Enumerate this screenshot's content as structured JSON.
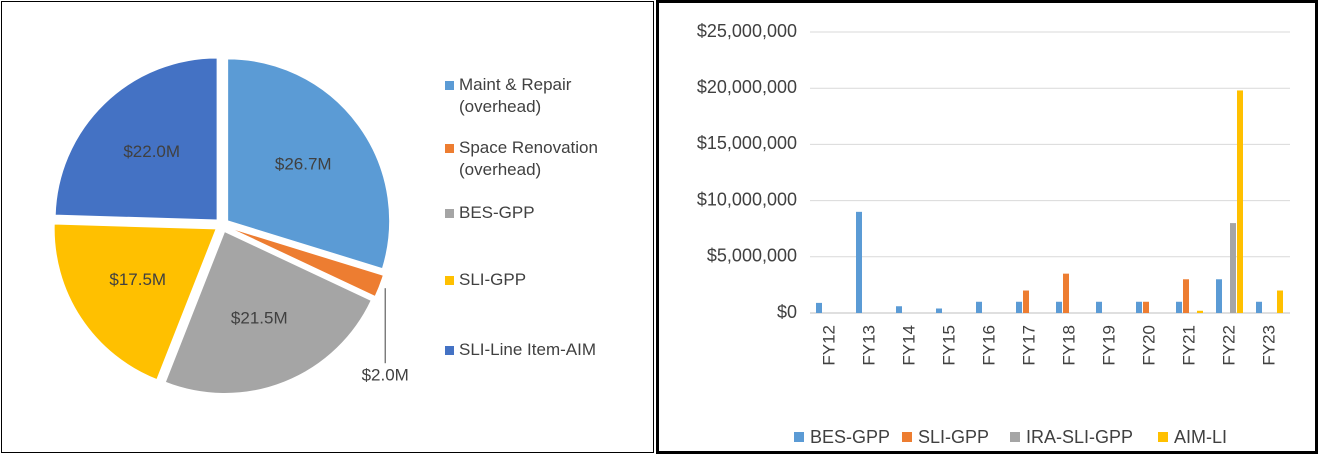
{
  "chart_data": [
    {
      "type": "pie",
      "categories": [
        "Maint & Repair (overhead)",
        "Space Renovation (overhead)",
        "BES-GPP",
        "SLI-GPP",
        "SLI-Line Item-AIM"
      ],
      "values": [
        26.7,
        2.0,
        21.5,
        17.5,
        22.0
      ],
      "value_labels": [
        "$26.7M",
        "$2.0M",
        "$21.5M",
        "$17.5M",
        "$22.0M"
      ],
      "colors": [
        "#5b9bd5",
        "#ed7d31",
        "#a5a5a5",
        "#ffc000",
        "#4472c4"
      ]
    },
    {
      "type": "bar",
      "categories": [
        "FY12",
        "FY13",
        "FY14",
        "FY15",
        "FY16",
        "FY17",
        "FY18",
        "FY19",
        "FY20",
        "FY21",
        "FY22",
        "FY23"
      ],
      "series": [
        {
          "name": "BES-GPP",
          "color": "#5b9bd5",
          "values": [
            900000,
            9000000,
            600000,
            400000,
            1000000,
            1000000,
            1000000,
            1000000,
            1000000,
            1000000,
            3000000,
            1000000
          ]
        },
        {
          "name": "SLI-GPP",
          "color": "#ed7d31",
          "values": [
            0,
            0,
            0,
            0,
            0,
            2000000,
            3500000,
            0,
            1000000,
            3000000,
            0,
            0
          ]
        },
        {
          "name": "IRA-SLI-GPP",
          "color": "#a5a5a5",
          "values": [
            0,
            0,
            0,
            0,
            0,
            0,
            0,
            0,
            0,
            0,
            8000000,
            0
          ]
        },
        {
          "name": "AIM-LI",
          "color": "#ffc000",
          "values": [
            0,
            0,
            0,
            0,
            0,
            0,
            0,
            0,
            0,
            200000,
            19800000,
            2000000
          ]
        }
      ],
      "ylim": [
        0,
        25000000
      ],
      "yticks": [
        {
          "value": 0,
          "label": "$0"
        },
        {
          "value": 5000000,
          "label": "$5,000,000"
        },
        {
          "value": 10000000,
          "label": "$10,000,000"
        },
        {
          "value": 15000000,
          "label": "$15,000,000"
        },
        {
          "value": 20000000,
          "label": "$20,000,000"
        },
        {
          "value": 25000000,
          "label": "$25,000,000"
        }
      ],
      "grid": true,
      "legend": "bottom"
    }
  ]
}
